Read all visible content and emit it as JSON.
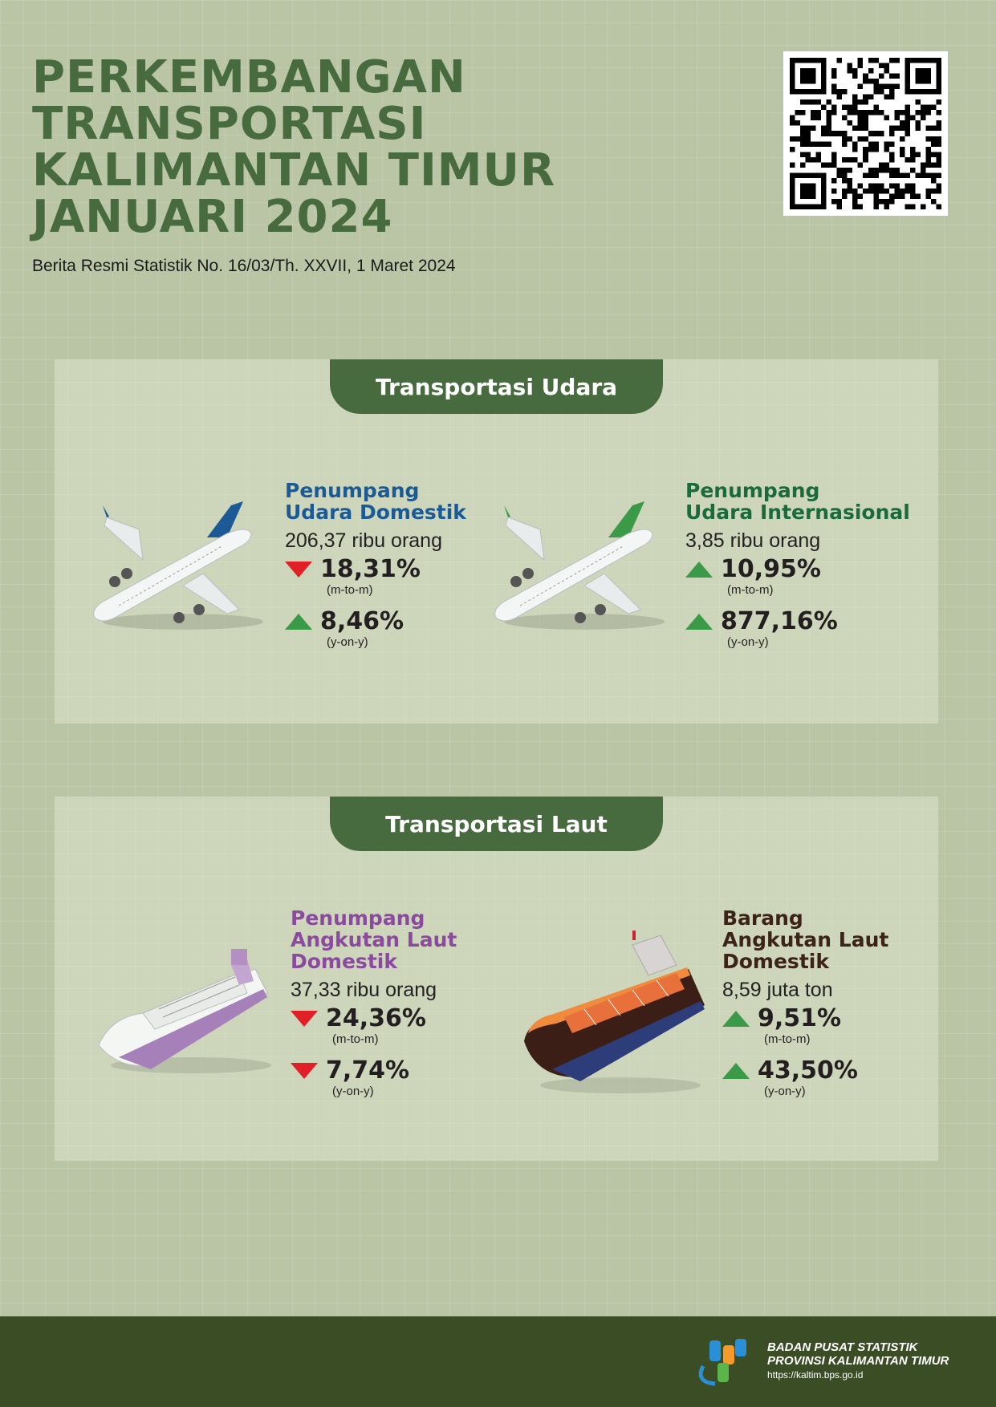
{
  "header": {
    "title_lines": [
      "PERKEMBANGAN",
      "TRANSPORTASI",
      "KALIMANTAN TIMUR",
      "JANUARI 2024"
    ],
    "subtitle": "Berita Resmi Statistik No. 16/03/Th. XXVII, 1 Maret 2024"
  },
  "icons": {
    "qr": "qr-code",
    "plane": "airplane",
    "ferry": "passenger-ship",
    "cargo": "cargo-ship",
    "trend_down": "triangle-down",
    "trend_up": "triangle-up",
    "logo": "bps-logo"
  },
  "colors": {
    "title": "#476a3f",
    "header_band": "#476a3f",
    "domestic_air": "#1b5a94",
    "international_air": "#1b6a3a",
    "sea_passenger": "#8a4a9e",
    "sea_cargo": "#3b2417",
    "down": "#e02027",
    "up": "#3a9a47",
    "footer": "#3b4d25"
  },
  "air": {
    "heading": "Transportasi Udara",
    "domestic": {
      "title_lines": [
        "Penumpang",
        "Udara Domestik"
      ],
      "value": "206,37 ribu orang",
      "mtm": {
        "direction": "down",
        "pct": "18,31%",
        "label": "(m-to-m)"
      },
      "yoy": {
        "direction": "up",
        "pct": "8,46%",
        "label": "(y-on-y)"
      }
    },
    "international": {
      "title_lines": [
        "Penumpang",
        "Udara Internasional"
      ],
      "value": "3,85 ribu orang",
      "mtm": {
        "direction": "up",
        "pct": "10,95%",
        "label": "(m-to-m)"
      },
      "yoy": {
        "direction": "up",
        "pct": "877,16%",
        "label": "(y-on-y)"
      }
    }
  },
  "sea": {
    "heading": "Transportasi Laut",
    "passenger": {
      "title_lines": [
        "Penumpang",
        "Angkutan Laut",
        "Domestik"
      ],
      "value": "37,33 ribu orang",
      "mtm": {
        "direction": "down",
        "pct": "24,36%",
        "label": "(m-to-m)"
      },
      "yoy": {
        "direction": "down",
        "pct": "7,74%",
        "label": "(y-on-y)"
      }
    },
    "cargo": {
      "title_lines": [
        "Barang",
        "Angkutan Laut",
        "Domestik"
      ],
      "value": "8,59 juta ton",
      "mtm": {
        "direction": "up",
        "pct": "9,51%",
        "label": "(m-to-m)"
      },
      "yoy": {
        "direction": "up",
        "pct": "43,50%",
        "label": "(y-on-y)"
      }
    }
  },
  "footer": {
    "org_line1": "BADAN PUSAT STATISTIK",
    "org_line2": "PROVINSI KALIMANTAN TIMUR",
    "url": "https://kaltim.bps.go.id"
  }
}
